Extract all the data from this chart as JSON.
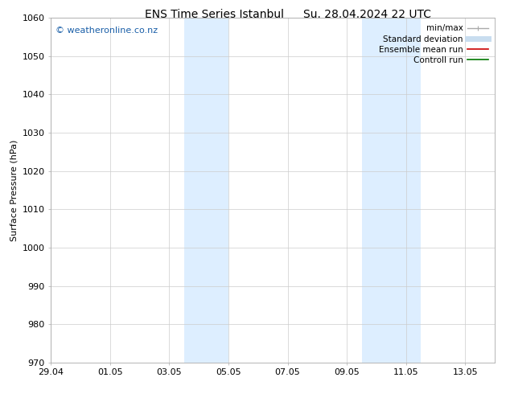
{
  "title": "ENS Time Series Istanbul",
  "title2": "Su. 28.04.2024 22 UTC",
  "ylabel": "Surface Pressure (hPa)",
  "ylim": [
    970,
    1060
  ],
  "yticks": [
    970,
    980,
    990,
    1000,
    1010,
    1020,
    1030,
    1040,
    1050,
    1060
  ],
  "xtick_labels": [
    "29.04",
    "01.05",
    "03.05",
    "05.05",
    "07.05",
    "09.05",
    "11.05",
    "13.05"
  ],
  "xtick_positions": [
    0,
    2,
    4,
    6,
    8,
    10,
    12,
    14
  ],
  "xlim": [
    0,
    15
  ],
  "shaded_bands": [
    {
      "x_start": 4.5,
      "x_end": 6.0
    },
    {
      "x_start": 10.5,
      "x_end": 12.5
    }
  ],
  "shaded_color": "#ddeeff",
  "watermark_text": "© weatheronline.co.nz",
  "watermark_color": "#1a5fa8",
  "legend_entries": [
    {
      "label": "min/max",
      "color": "#aaaaaa",
      "lw": 1.0
    },
    {
      "label": "Standard deviation",
      "color": "#c8ddef",
      "lw": 5
    },
    {
      "label": "Ensemble mean run",
      "color": "#cc0000",
      "lw": 1.2
    },
    {
      "label": "Controll run",
      "color": "#007700",
      "lw": 1.2
    }
  ],
  "bg_color": "#ffffff",
  "grid_color": "#cccccc",
  "title_fontsize": 10,
  "axis_label_fontsize": 8,
  "tick_fontsize": 8,
  "legend_fontsize": 7.5,
  "watermark_fontsize": 8
}
